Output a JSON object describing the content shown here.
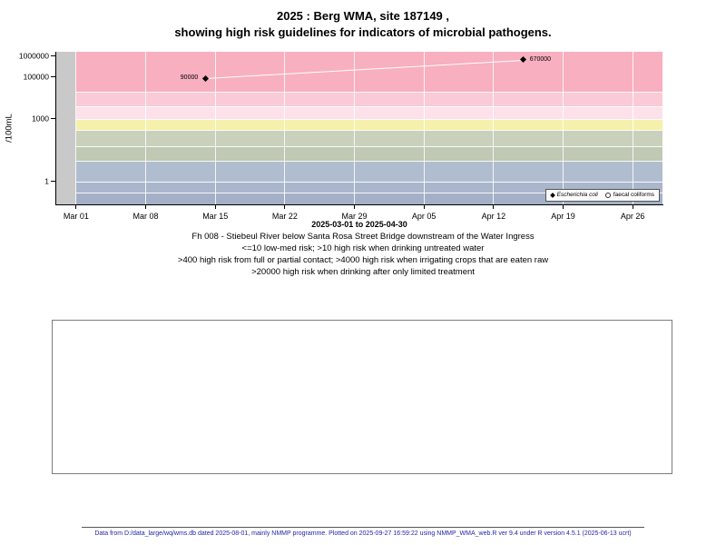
{
  "page": {
    "title_line1": "2025 : Berg WMA, site 187149 ,",
    "title_line2": "showing high risk guidelines for indicators of microbial pathogens."
  },
  "chart_data": {
    "type": "scatter",
    "title": "2025 : Berg WMA, site 187149 , showing high risk guidelines for indicators of microbial pathogens.",
    "ylabel": "/100mL",
    "xlabel": "2025-03-01 to 2025-04-30",
    "y_scale": "log10",
    "ylim": [
      0.08,
      1650000
    ],
    "x_range": [
      "2025-02-27",
      "2025-04-29"
    ],
    "bands_start": "2025-03-01",
    "plot_bg": "#C9C9C9",
    "grid_color": "#FFFFFF",
    "line_color": "#FFFFFF",
    "marker_color": "#000000",
    "x_ticks": [
      {
        "label": "Mar 01",
        "date": "2025-03-01"
      },
      {
        "label": "Mar 08",
        "date": "2025-03-08"
      },
      {
        "label": "Mar 15",
        "date": "2025-03-15"
      },
      {
        "label": "Mar 22",
        "date": "2025-03-22"
      },
      {
        "label": "Mar 29",
        "date": "2025-03-29"
      },
      {
        "label": "Apr 05",
        "date": "2025-04-05"
      },
      {
        "label": "Apr 12",
        "date": "2025-04-12"
      },
      {
        "label": "Apr 19",
        "date": "2025-04-19"
      },
      {
        "label": "Apr 26",
        "date": "2025-04-26"
      }
    ],
    "y_ticks": [
      {
        "label": "1000000",
        "value": 1000000
      },
      {
        "label": "100000",
        "value": 100000
      },
      {
        "label": "1000",
        "value": 1000
      },
      {
        "label": "1",
        "value": 1
      }
    ],
    "series": [
      {
        "name": "Escherichia coli",
        "marker": "filled-diamond",
        "points": [
          {
            "date": "2025-03-14",
            "value": 90000,
            "label": "90000",
            "label_side": "left"
          },
          {
            "date": "2025-04-15",
            "value": 670000,
            "label": "670000",
            "label_side": "right"
          }
        ]
      },
      {
        "name": "faecal coliforms",
        "marker": "open-circle",
        "points": []
      }
    ],
    "risk_bands": [
      {
        "from": 20000,
        "to": 2000000,
        "color": "#F8AFC0"
      },
      {
        "from": 4000,
        "to": 20000,
        "color": "#FACBD7"
      },
      {
        "from": 1000,
        "to": 4000,
        "color": "#FCE1EB"
      },
      {
        "from": 300,
        "to": 1000,
        "color": "#F5F0AC"
      },
      {
        "from": 50,
        "to": 300,
        "color": "#C9D1BC"
      },
      {
        "from": 10,
        "to": 50,
        "color": "#BFC9B3"
      },
      {
        "from": 1,
        "to": 10,
        "color": "#B0BDCF"
      },
      {
        "from": 0.3,
        "to": 1,
        "color": "#A9B6CB"
      },
      {
        "from": 0.05,
        "to": 0.3,
        "color": "#A3B0C7"
      }
    ]
  },
  "legend": {
    "items": [
      {
        "label": "Escherichia coli",
        "marker": "filled-diamond"
      },
      {
        "label": "faecal coliforms",
        "marker": "open-circle"
      }
    ]
  },
  "caption": {
    "line1": "Fh 008 - Stiebeul River below Santa Rosa Street Bridge downstream of the Water Ingress",
    "line2": "<=10 low-med risk; >10 high risk when drinking untreated water",
    "line3": ">400 high risk from full or partial contact; >4000 high risk when irrigating crops that are eaten raw",
    "line4": ">20000 high risk when drinking after only limited treatment"
  },
  "footer": "Data from D:/data_large/wq/wms.db dated 2025-08-01, mainly NMMP programme. Plotted on 2025-09-27 16:59:22 using NMMP_WMA_web.R ver 9.4 under R version 4.5.1 (2025-06-13 ucrt)"
}
